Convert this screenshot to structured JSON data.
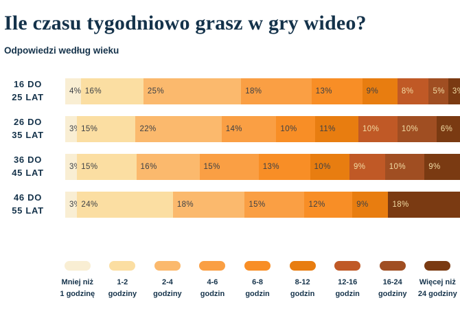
{
  "header": {
    "title": "Ile czasu tygodniowo grasz w gry wideo?",
    "subtitle": "Odpowiedzi według wieku"
  },
  "chart_data": {
    "type": "bar",
    "orientation": "horizontal",
    "stacked": true,
    "unit": "%",
    "title": "Ile czasu tygodniowo grasz w gry wideo?",
    "subtitle": "Odpowiedzi według wieku",
    "categories": [
      "16 do 25 lat",
      "26 do 35 lat",
      "36 do 45 lat",
      "46 do 55 lat"
    ],
    "row_labels": [
      [
        "16 DO",
        "25 LAT"
      ],
      [
        "26 DO",
        "35 LAT"
      ],
      [
        "36 DO",
        "45 LAT"
      ],
      [
        "46 DO",
        "55 LAT"
      ]
    ],
    "series": [
      {
        "name": "Mniej niż 1 godzinę",
        "color": "#F9EED3",
        "values": [
          4,
          3,
          3,
          3
        ]
      },
      {
        "name": "1-2 godziny",
        "color": "#FBDEA2",
        "values": [
          16,
          15,
          15,
          24
        ]
      },
      {
        "name": "2-4 godziny",
        "color": "#FBB96D",
        "values": [
          25,
          22,
          16,
          18
        ]
      },
      {
        "name": "4-6 godzin",
        "color": "#FA9F44",
        "values": [
          18,
          14,
          15,
          15
        ]
      },
      {
        "name": "6-8 godzin",
        "color": "#F88E26",
        "values": [
          13,
          10,
          13,
          12
        ]
      },
      {
        "name": "8-12 godzin",
        "color": "#E87D10",
        "values": [
          9,
          11,
          10,
          9
        ]
      },
      {
        "name": "12-16 godzin",
        "color": "#C05926",
        "values": [
          8,
          10,
          9,
          null
        ]
      },
      {
        "name": "16-24 godziny",
        "color": "#A04E22",
        "values": [
          5,
          10,
          10,
          null
        ]
      },
      {
        "name": "Więcej niż 24 godziny",
        "color": "#7A3A12",
        "values": [
          3,
          6,
          9,
          18
        ]
      }
    ],
    "legend": [
      [
        "Mniej niż",
        "1 godzinę"
      ],
      [
        "1-2",
        "godziny"
      ],
      [
        "2-4",
        "godziny"
      ],
      [
        "4-6",
        "godzin"
      ],
      [
        "6-8",
        "godzin"
      ],
      [
        "8-12",
        "godzin"
      ],
      [
        "12-16",
        "godzin"
      ],
      [
        "16-24",
        "godziny"
      ],
      [
        "Więcej niż",
        "24 godziny"
      ]
    ],
    "legend_position": "bottom",
    "data_label_format": "{value}%",
    "label_colors": {
      "dark": "#3D4045",
      "light": "#F2DCA4"
    },
    "light_label_from_series_index": 6,
    "grid": false
  }
}
